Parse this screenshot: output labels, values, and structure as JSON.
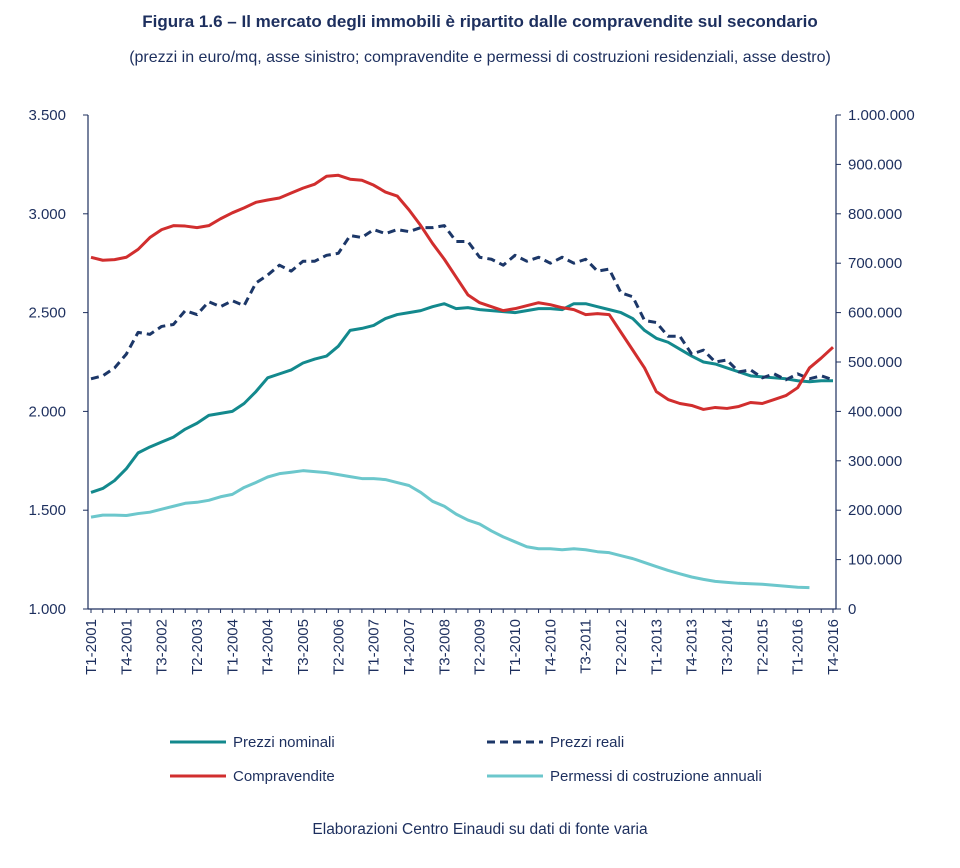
{
  "chart_data": {
    "type": "line",
    "title": "Figura 1.6 – Il mercato degli immobili è ripartito dalle compravendite sul secondario",
    "subtitle": "(prezzi in euro/mq, asse sinistro; compravendite e permessi di costruzioni residenziali, asse destro)",
    "source": "Elaborazioni Centro Einaudi su dati di fonte varia",
    "categories": [
      "T1-2001",
      null,
      null,
      "T4-2001",
      null,
      null,
      "T3-2002",
      null,
      null,
      "T2-2003",
      null,
      null,
      "T1-2004",
      null,
      null,
      "T4-2004",
      null,
      null,
      "T3-2005",
      null,
      null,
      "T2-2006",
      null,
      null,
      "T1-2007",
      null,
      null,
      "T4-2007",
      null,
      null,
      "T3-2008",
      null,
      null,
      "T2-2009",
      null,
      null,
      "T1-2010",
      null,
      null,
      "T4-2010",
      null,
      null,
      "T3-2011",
      null,
      null,
      "T2-2012",
      null,
      null,
      "T1-2013",
      null,
      null,
      "T4-2013",
      null,
      null,
      "T3-2014",
      null,
      null,
      "T2-2015",
      null,
      null,
      "T1-2016",
      null,
      null,
      "T4-2016"
    ],
    "ylim": [
      1000,
      3500
    ],
    "yticks": [
      {
        "value": 1000,
        "label": "1.000"
      },
      {
        "value": 1500,
        "label": "1.500"
      },
      {
        "value": 2000,
        "label": "2.000"
      },
      {
        "value": 2500,
        "label": "2.500"
      },
      {
        "value": 3000,
        "label": "3.000"
      },
      {
        "value": 3500,
        "label": "3.500"
      }
    ],
    "y2lim": [
      0,
      1000000
    ],
    "y2ticks": [
      0,
      {
        "value": 100000,
        "label": "100.000"
      },
      {
        "value": 200000,
        "label": "200.000"
      },
      {
        "value": 300000,
        "label": "300.000"
      },
      {
        "value": 400000,
        "label": "400.000"
      },
      {
        "value": 500000,
        "label": "500.000"
      },
      {
        "value": 600000,
        "label": "600.000"
      },
      {
        "value": 700000,
        "label": "700.000"
      },
      {
        "value": 800000,
        "label": "800.000"
      },
      {
        "value": 900000,
        "label": "900.000"
      },
      {
        "value": 1000000,
        "label": "1.000.000"
      }
    ],
    "grid": false,
    "series": [
      {
        "name": "Prezzi nominali",
        "color": "#13898d",
        "dash": false,
        "values": [
          1590,
          1610,
          1650,
          1710,
          1790,
          1820,
          1845,
          1870,
          1910,
          1940,
          1980,
          1990,
          2000,
          2040,
          2100,
          2170,
          2190,
          2210,
          2245,
          2265,
          2280,
          2330,
          2410,
          2420,
          2435,
          2470,
          2490,
          2500,
          2510,
          2530,
          2545,
          2520,
          2525,
          2515,
          2510,
          2505,
          2500,
          2510,
          2520,
          2520,
          2515,
          2545,
          2545,
          2530,
          2515,
          2500,
          2470,
          2410,
          2370,
          2350,
          2315,
          2280,
          2250,
          2240,
          2220,
          2200,
          2180,
          2175,
          2170,
          2165,
          2155,
          2150,
          2155,
          2155
        ]
      },
      {
        "name": "Prezzi reali",
        "color": "#1c3768",
        "dash": true,
        "values": [
          2165,
          2180,
          2220,
          2290,
          2400,
          2390,
          2430,
          2440,
          2510,
          2490,
          2555,
          2530,
          2560,
          2535,
          2650,
          2690,
          2740,
          2710,
          2760,
          2760,
          2790,
          2800,
          2890,
          2880,
          2920,
          2900,
          2920,
          2910,
          2930,
          2930,
          2940,
          2860,
          2860,
          2780,
          2770,
          2740,
          2790,
          2760,
          2780,
          2750,
          2780,
          2750,
          2770,
          2710,
          2720,
          2600,
          2580,
          2460,
          2450,
          2380,
          2380,
          2290,
          2310,
          2250,
          2260,
          2200,
          2210,
          2170,
          2190,
          2160,
          2190,
          2165,
          2180,
          2160
        ]
      },
      {
        "name": "Compravendite",
        "color": "#d12e2e",
        "dash": false,
        "axis": "y2",
        "values": [
          712000,
          706000,
          707200,
          712000,
          728000,
          752000,
          768000,
          776000,
          775200,
          772000,
          776000,
          790000,
          802000,
          812000,
          823200,
          828000,
          832000,
          842000,
          852000,
          860000,
          876000,
          878000,
          870000,
          868000,
          858000,
          844000,
          836000,
          808000,
          776000,
          740000,
          708000,
          672000,
          636000,
          620000,
          612000,
          604000,
          608000,
          614000,
          620000,
          616000,
          610000,
          606000,
          596000,
          598000,
          596000,
          560000,
          524000,
          488000,
          440000,
          424000,
          416000,
          412000,
          404000,
          408000,
          406000,
          410000,
          418000,
          416000,
          424000,
          432000,
          448000,
          488000,
          508000,
          530000
        ]
      },
      {
        "name": "Permessi di costruzione annuali",
        "color": "#6cc7cc",
        "dash": false,
        "axis": "y2",
        "values": [
          186000,
          190000,
          190000,
          189200,
          193200,
          196000,
          202000,
          208000,
          214000,
          216000,
          220000,
          227200,
          232000,
          246000,
          256000,
          267200,
          274000,
          276800,
          280000,
          278000,
          276000,
          272000,
          268000,
          264000,
          264000,
          262000,
          256000,
          250000,
          236000,
          218000,
          208000,
          192000,
          180000,
          172000,
          158000,
          146000,
          136000,
          126000,
          122000,
          122000,
          120000,
          122000,
          120000,
          116000,
          114000,
          108000,
          102000,
          94000,
          86000,
          78000,
          71200,
          64800,
          60000,
          56000,
          54000,
          52000,
          51200,
          50000,
          48000,
          46000,
          44000,
          43200,
          null,
          null
        ]
      }
    ]
  }
}
